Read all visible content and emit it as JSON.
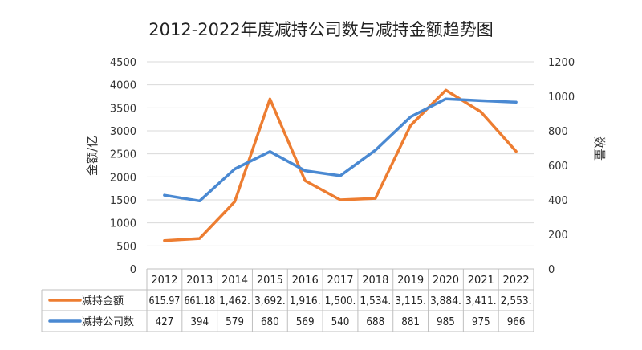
{
  "chart_data": {
    "type": "line",
    "title": "2012-2022年度减持公司数与减持金额趋势图",
    "categories": [
      "2012",
      "2013",
      "2014",
      "2015",
      "2016",
      "2017",
      "2018",
      "2019",
      "2020",
      "2021",
      "2022"
    ],
    "y_left": {
      "label": "金额/亿",
      "ticks": [
        "0",
        "500",
        "1000",
        "1500",
        "2000",
        "2500",
        "3000",
        "3500",
        "4000",
        "4500"
      ],
      "ylim": [
        0,
        4500
      ]
    },
    "y_right": {
      "label": "数量",
      "ticks": [
        "0",
        "200",
        "400",
        "600",
        "800",
        "1000",
        "1200"
      ],
      "ylim": [
        0,
        1200
      ]
    },
    "series": [
      {
        "name": "减持金额",
        "axis": "left",
        "color": "#ED7D31",
        "values": [
          615.97,
          661.18,
          1462,
          3692,
          1916,
          1500,
          1534,
          3115,
          3884,
          3411,
          2553
        ],
        "labels": [
          "615.97",
          "661.18",
          "1,462.",
          "3,692.",
          "1,916.",
          "1,500.",
          "1,534.",
          "3,115.",
          "3,884.",
          "3,411.",
          "2,553."
        ]
      },
      {
        "name": "减持公司数",
        "axis": "right",
        "color": "#4A89D2",
        "values": [
          427,
          394,
          579,
          680,
          569,
          540,
          688,
          881,
          985,
          975,
          966
        ],
        "labels": [
          "427",
          "394",
          "579",
          "680",
          "569",
          "540",
          "688",
          "881",
          "985",
          "975",
          "966"
        ]
      }
    ],
    "grid": true
  }
}
